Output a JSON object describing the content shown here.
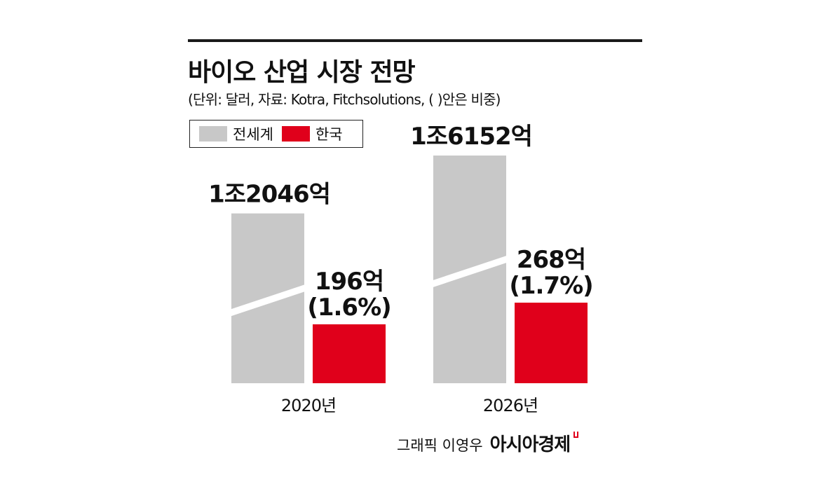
{
  "chart_data": {
    "type": "bar",
    "title": "바이오 산업 시장 전망",
    "subtitle": "(단위: 달러, 자료: Kotra, Fitchsolutions, (    )안은 비중)",
    "categories": [
      "2020년",
      "2026년"
    ],
    "series": [
      {
        "name": "전세계",
        "color": "#c8c8c8",
        "values": [
          12046,
          16152
        ],
        "labels": [
          "1조2046억",
          "1조6152억"
        ]
      },
      {
        "name": "한국",
        "color": "#e0001b",
        "values": [
          196,
          268
        ],
        "labels": [
          "196억",
          "268억"
        ],
        "shares": [
          "(1.6%)",
          "(1.7%)"
        ]
      }
    ],
    "axis_break": true,
    "legend_position": "top-left"
  },
  "credit": {
    "text": "그래픽 이영우",
    "logo": "아시아경제"
  }
}
